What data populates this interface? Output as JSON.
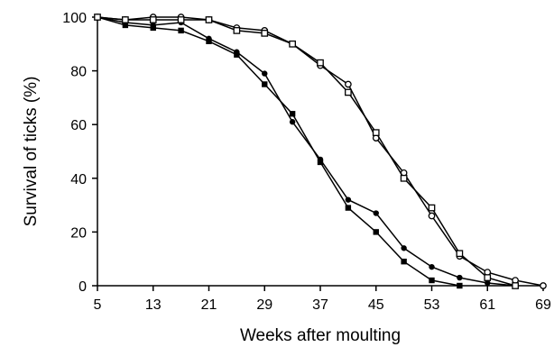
{
  "chart_data": {
    "type": "line",
    "title": "",
    "xlabel": "Weeks after moulting",
    "ylabel": "Survival of ticks (%)",
    "xlim": [
      5,
      69
    ],
    "ylim": [
      0,
      100
    ],
    "xticks": [
      5,
      13,
      21,
      29,
      37,
      45,
      53,
      61,
      69
    ],
    "yticks": [
      0,
      20,
      40,
      60,
      80,
      100
    ],
    "grid": false,
    "legend": "none",
    "series": [
      {
        "marker": "filled-circle",
        "color": "#000000",
        "x": [
          5,
          9,
          13,
          17,
          21,
          25,
          29,
          33,
          37,
          41,
          45,
          49,
          53,
          57,
          61,
          65
        ],
        "y": [
          100,
          98,
          97,
          98,
          92,
          87,
          79,
          61,
          47,
          32,
          27,
          14,
          7,
          3,
          1,
          0
        ]
      },
      {
        "marker": "filled-square",
        "color": "#000000",
        "x": [
          5,
          9,
          13,
          17,
          21,
          25,
          29,
          33,
          37,
          41,
          45,
          49,
          53,
          57
        ],
        "y": [
          100,
          97,
          96,
          95,
          91,
          86,
          75,
          64,
          46,
          29,
          20,
          9,
          2,
          0
        ]
      },
      {
        "marker": "open-circle",
        "color": "#000000",
        "x": [
          5,
          9,
          13,
          17,
          21,
          25,
          29,
          33,
          37,
          41,
          45,
          49,
          53,
          57,
          61,
          65,
          69
        ],
        "y": [
          100,
          99,
          100,
          100,
          99,
          96,
          95,
          90,
          82,
          75,
          55,
          42,
          26,
          11,
          5,
          2,
          0
        ]
      },
      {
        "marker": "open-square",
        "color": "#000000",
        "x": [
          5,
          9,
          13,
          17,
          21,
          25,
          29,
          33,
          37,
          41,
          45,
          49,
          53,
          57,
          61,
          65
        ],
        "y": [
          100,
          99,
          99,
          99,
          99,
          95,
          94,
          90,
          83,
          72,
          57,
          40,
          29,
          12,
          3,
          0
        ]
      }
    ]
  }
}
